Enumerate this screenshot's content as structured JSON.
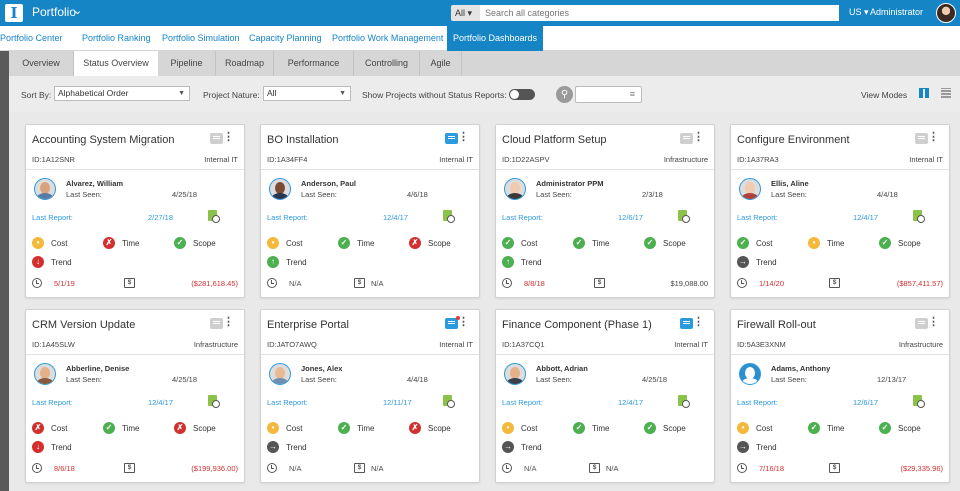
{
  "app": {
    "title": "Portfolio"
  },
  "search": {
    "scope": "All",
    "placeholder": "Search all categories"
  },
  "header": {
    "locale": "US",
    "user": "Administrator"
  },
  "nav": {
    "items": [
      "Portfolio Center",
      "Portfolio Ranking",
      "Portfolio Simulation",
      "Capacity Planning",
      "Portfolio Work Management",
      "Portfolio Dashboards"
    ],
    "active": "Portfolio Dashboards"
  },
  "tabs": {
    "items": [
      "Overview",
      "Status Overview",
      "Pipeline",
      "Roadmap",
      "Performance",
      "Controlling",
      "Agile"
    ],
    "active": "Status Overview"
  },
  "filters": {
    "sort_label": "Sort By:",
    "sort_value": "Alphabetical Order",
    "nature_label": "Project Nature:",
    "nature_value": "All",
    "show_label": "Show Projects without Status Reports:",
    "view_modes_label": "View Modes"
  },
  "labels": {
    "last_seen": "Last Seen:",
    "last_report": "Last Report:",
    "cost": "Cost",
    "time": "Time",
    "scope": "Scope",
    "trend": "Trend",
    "dollar": "$"
  },
  "colors": {
    "brand": "#1685c6",
    "green": "#4caf50",
    "red": "#d32f2f",
    "yellow": "#f4b93b"
  },
  "cards": [
    {
      "title": "Accounting System Migration",
      "id": "ID:1A12SNR",
      "dept": "Internal IT",
      "msg": "gray",
      "pm": "Alvarez, William",
      "last_seen": "4/25/18",
      "last_report": "2/27/18",
      "cost": "yellow",
      "time": "red",
      "scope": "green",
      "trend": "red",
      "end_date": "5/1/19",
      "end_color": "red",
      "budget": "($281,618.45)",
      "budget_color": "red"
    },
    {
      "title": "BO Installation",
      "id": "ID:1A34FF4",
      "dept": "Internal IT",
      "msg": "blue",
      "pm": "Anderson, Paul",
      "last_seen": "4/6/18",
      "last_report": "12/4/17",
      "cost": "yellow",
      "time": "green",
      "scope": "red",
      "trend": "green",
      "end_date": "N/A",
      "end_color": "gray",
      "budget": "N/A",
      "budget_color": "gray"
    },
    {
      "title": "Cloud Platform Setup",
      "id": "ID:1D22ASPV",
      "dept": "Infrastructure",
      "msg": "gray",
      "pm": "Administrator PPM",
      "last_seen": "2/3/18",
      "last_report": "12/6/17",
      "cost": "green",
      "time": "green",
      "scope": "green",
      "trend": "green",
      "end_date": "8/8/18",
      "end_color": "red",
      "budget": "$19,088.00",
      "budget_color": "gray"
    },
    {
      "title": "Configure Environment",
      "id": "ID:1A37RA3",
      "dept": "Internal IT",
      "msg": "gray",
      "pm": "Ellis, Aline",
      "last_seen": "4/4/18",
      "last_report": "12/4/17",
      "cost": "green",
      "time": "yellow",
      "scope": "green",
      "trend": "gray",
      "end_date": "1/14/20",
      "end_color": "red",
      "budget": "($857,411.57)",
      "budget_color": "red"
    },
    {
      "title": "CRM Version Update",
      "id": "ID:1A45SLW",
      "dept": "Infrastructure",
      "msg": "gray",
      "pm": "Abberline, Denise",
      "last_seen": "4/25/18",
      "last_report": "12/4/17",
      "cost": "red",
      "time": "green",
      "scope": "red",
      "trend": "red",
      "end_date": "8/6/18",
      "end_color": "red",
      "budget": "($199,936.00)",
      "budget_color": "red"
    },
    {
      "title": "Enterprise Portal",
      "id": "ID:JATO7AWQ",
      "dept": "Internal IT",
      "msg": "blue-dot",
      "pm": "Jones, Alex",
      "last_seen": "4/4/18",
      "last_report": "12/11/17",
      "cost": "yellow",
      "time": "green",
      "scope": "red",
      "trend": "gray",
      "end_date": "N/A",
      "end_color": "gray",
      "budget": "N/A",
      "budget_color": "gray"
    },
    {
      "title": "Finance Component (Phase 1)",
      "id": "ID:1A37CQ1",
      "dept": "Internal IT",
      "msg": "blue",
      "pm": "Abbott, Adrian",
      "last_seen": "4/25/18",
      "last_report": "12/4/17",
      "cost": "yellow",
      "time": "green",
      "scope": "green",
      "trend": "gray",
      "end_date": "N/A",
      "end_color": "gray",
      "budget": "N/A",
      "budget_color": "gray"
    },
    {
      "title": "Firewall Roll-out",
      "id": "ID:5A3E3XNM",
      "dept": "Infrastructure",
      "msg": "gray",
      "pm": "Adams, Anthony",
      "last_seen": "12/13/17",
      "last_report": "12/6/17",
      "cost": "yellow",
      "time": "green",
      "scope": "green",
      "trend": "gray",
      "end_date": "7/16/18",
      "end_color": "red",
      "budget": "($29,335.96)",
      "budget_color": "red"
    }
  ]
}
